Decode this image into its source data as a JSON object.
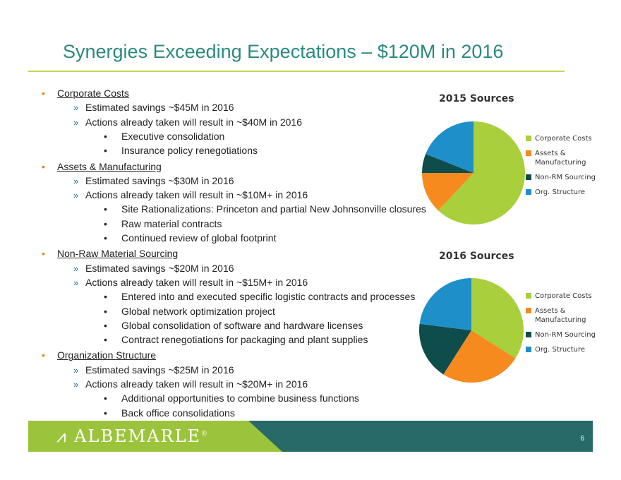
{
  "slide": {
    "title": "Synergies Exceeding Expectations – $120M in 2016",
    "page_number": "6",
    "logo_text": "ALBEMARLE",
    "logo_mark": "®"
  },
  "colors": {
    "title": "#2a8a7e",
    "rule": "#c0d84a",
    "footer_green": "#9bc43c",
    "footer_teal": "#276a68"
  },
  "sections": [
    {
      "heading": "Corporate Costs",
      "items": [
        {
          "text": "Estimated savings ~$45M in 2016",
          "subs": []
        },
        {
          "text": "Actions already taken will result in ~$40M in 2016",
          "subs": [
            "Executive consolidation",
            "Insurance policy renegotiations"
          ]
        }
      ]
    },
    {
      "heading": "Assets & Manufacturing",
      "items": [
        {
          "text": "Estimated savings ~$30M in 2016",
          "subs": []
        },
        {
          "text": "Actions already taken will result in ~$10M+ in 2016",
          "subs": [
            "Site Rationalizations: Princeton and partial New Johnsonville closures",
            "Raw material contracts",
            "Continued review of global footprint"
          ]
        }
      ]
    },
    {
      "heading": "Non-Raw Material Sourcing",
      "items": [
        {
          "text": "Estimated savings ~$20M in 2016",
          "subs": []
        },
        {
          "text": "Actions already taken will result in ~$15M+ in 2016",
          "subs": [
            "Entered into and executed specific logistic contracts and processes",
            "Global network optimization project",
            "Global consolidation of software and hardware licenses",
            "Contract renegotiations for packaging and plant supplies"
          ]
        }
      ]
    },
    {
      "heading": "Organization Structure",
      "items": [
        {
          "text": "Estimated savings ~$25M in 2016",
          "subs": []
        },
        {
          "text": "Actions already taken will result in ~$20M+ in 2016",
          "subs": [
            "Additional opportunities to combine business functions",
            "Back office consolidations"
          ]
        }
      ]
    }
  ],
  "chart_data": [
    {
      "type": "pie",
      "title": "2015 Sources",
      "categories": [
        "Corporate Costs",
        "Assets & Manufacturing",
        "Non-RM Sourcing",
        "Org. Structure"
      ],
      "values": [
        62,
        13,
        6,
        19
      ],
      "colors": [
        "#a9cf3c",
        "#f68a1f",
        "#0e4d4b",
        "#1e8fc9"
      ],
      "legend": "right"
    },
    {
      "type": "pie",
      "title": "2016 Sources",
      "categories": [
        "Corporate Costs",
        "Assets & Manufacturing",
        "Non-RM Sourcing",
        "Org. Structure"
      ],
      "values": [
        34,
        25,
        18,
        23
      ],
      "colors": [
        "#a9cf3c",
        "#f68a1f",
        "#0e4d4b",
        "#1e8fc9"
      ],
      "legend": "right"
    }
  ]
}
